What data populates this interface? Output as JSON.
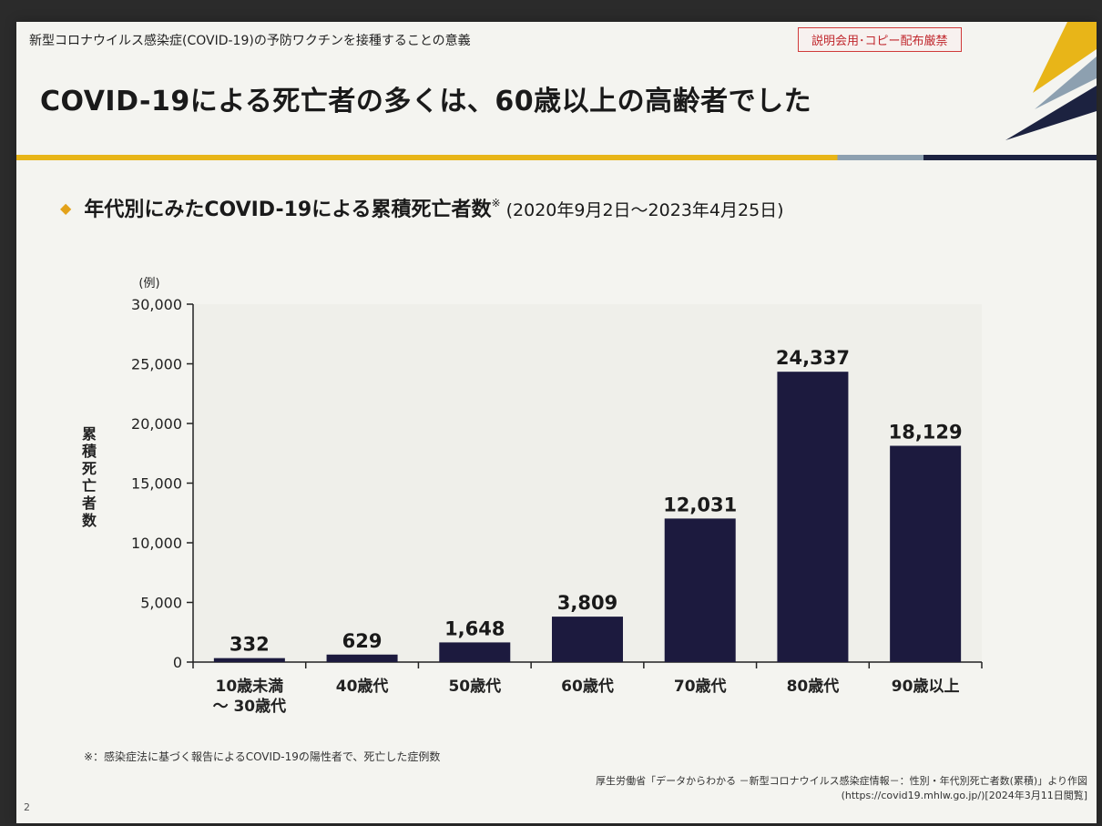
{
  "header": {
    "subtitle": "新型コロナウイルス感染症(COVID-19)の予防ワクチンを接種することの意義",
    "stamp": "説明会用･コピー配布厳禁",
    "title": "COVID-19による死亡者の多くは、60歳以上の高齢者でした"
  },
  "section": {
    "heading": "年代別にみたCOVID-19による累積死亡者数",
    "mark": "※",
    "period": "(2020年9月2日～2023年4月25日)"
  },
  "colors": {
    "bar": "#1c1a3e",
    "accent": "#e8b518",
    "stamp": "#c0272d"
  },
  "chart_data": {
    "type": "bar",
    "categories": [
      "10歳未満\n～ 30歳代",
      "40歳代",
      "50歳代",
      "60歳代",
      "70歳代",
      "80歳代",
      "90歳以上"
    ],
    "values": [
      332,
      629,
      1648,
      3809,
      12031,
      24337,
      18129
    ],
    "value_labels": [
      "332",
      "629",
      "1,648",
      "3,809",
      "12,031",
      "24,337",
      "18,129"
    ],
    "ylabel": "累積死亡者数",
    "yunit": "(例)",
    "ylim": [
      0,
      30000
    ],
    "yticks": [
      0,
      5000,
      10000,
      15000,
      20000,
      25000,
      30000
    ],
    "ytick_labels": [
      "0",
      "5,000",
      "10,000",
      "15,000",
      "20,000",
      "25,000",
      "30,000"
    ],
    "grid": false,
    "legend": "none"
  },
  "footnote": "※：感染症法に基づく報告によるCOVID-19の陽性者で、死亡した症例数",
  "page_number": "2",
  "source": {
    "line1": "厚生労働省「データからわかる －新型コロナウイルス感染症情報－：性別・年代別死亡者数(累積)」より作図",
    "line2": "(https://covid19.mhlw.go.jp/)[2024年3月11日閲覧]"
  }
}
